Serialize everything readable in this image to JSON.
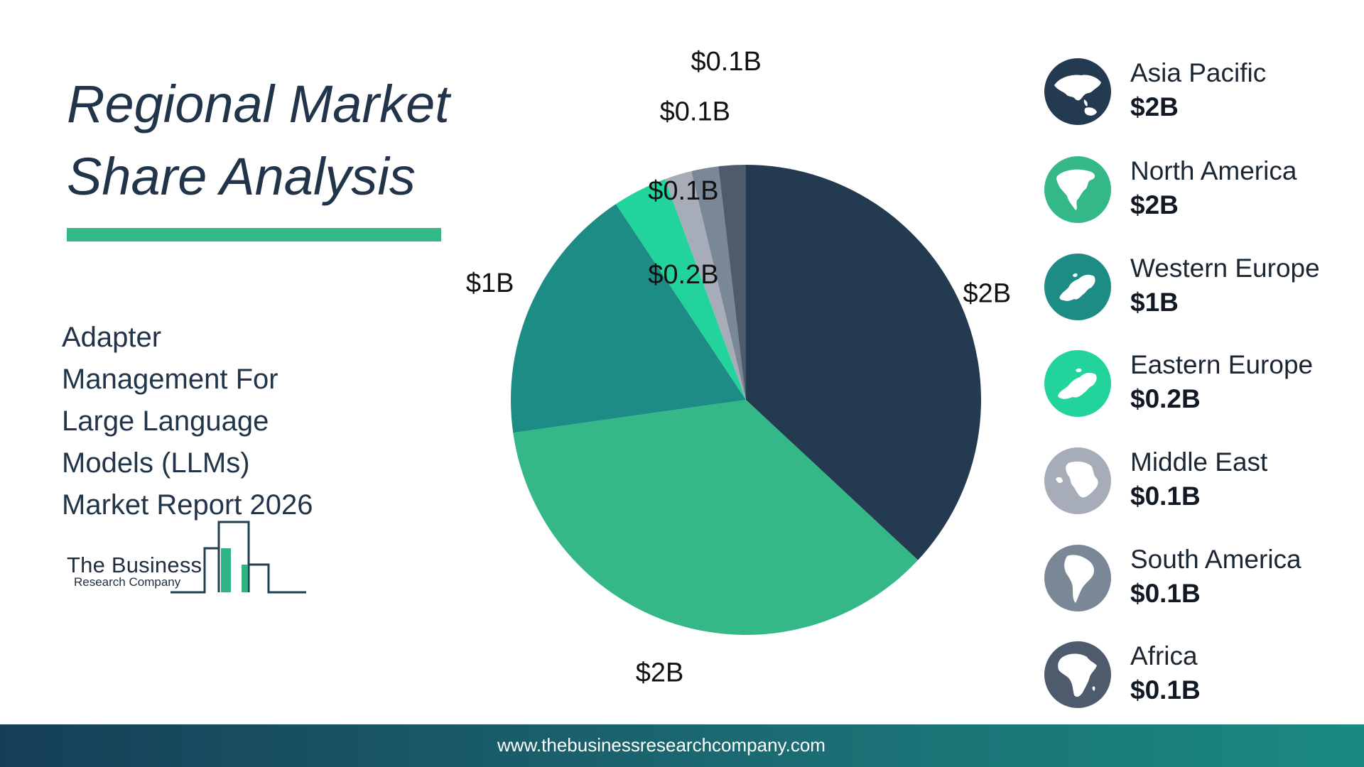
{
  "title": {
    "line1": "Regional Market",
    "line2": "Share Analysis"
  },
  "subtitle": {
    "lines": [
      "Adapter",
      "Management For",
      "Large Language",
      "Models (LLMs)",
      "Market Report 2026"
    ]
  },
  "logo": {
    "line1": "The Business",
    "line2": "Research Company"
  },
  "chart_data": {
    "type": "pie",
    "start_angle_deg": 0,
    "direction": "clockwise",
    "categories": [
      "Asia Pacific",
      "North America",
      "Western Europe",
      "Eastern Europe",
      "Middle East",
      "South America",
      "Africa"
    ],
    "values": [
      1.98,
      1.92,
      0.96,
      0.2,
      0.1,
      0.1,
      0.1
    ],
    "data_labels": [
      "$2B",
      "$2B",
      "$1B",
      "$0.2B",
      "$0.1B",
      "$0.1B",
      "$0.1B"
    ],
    "colors": [
      "#243a51",
      "#34b888",
      "#1d8c84",
      "#22d49c",
      "#a6adb8",
      "#7a8796",
      "#4d5b6c"
    ],
    "legend_position": "right"
  },
  "legend": {
    "items": [
      {
        "name": "Asia Pacific",
        "value": "$2B",
        "icon": "asia-pacific-map-icon",
        "color": "#243a51"
      },
      {
        "name": "North America",
        "value": "$2B",
        "icon": "north-america-map-icon",
        "color": "#34b888"
      },
      {
        "name": "Western Europe",
        "value": "$1B",
        "icon": "western-europe-map-icon",
        "color": "#1d8c84"
      },
      {
        "name": "Eastern Europe",
        "value": "$0.2B",
        "icon": "eastern-europe-map-icon",
        "color": "#22d49c"
      },
      {
        "name": "Middle East",
        "value": "$0.1B",
        "icon": "middle-east-map-icon",
        "color": "#a6adb8"
      },
      {
        "name": "South America",
        "value": "$0.1B",
        "icon": "south-america-map-icon",
        "color": "#7a8796"
      },
      {
        "name": "Africa",
        "value": "$0.1B",
        "icon": "africa-map-icon",
        "color": "#4d5b6c"
      }
    ]
  },
  "footer": {
    "url": "www.thebusinessresearchcompany.com"
  }
}
